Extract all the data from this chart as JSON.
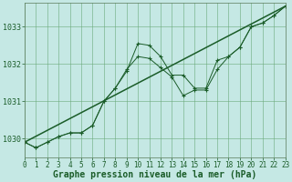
{
  "title": "Graphe pression niveau de la mer (hPa)",
  "xlabel_ticks": [
    0,
    1,
    2,
    3,
    4,
    5,
    6,
    7,
    8,
    9,
    10,
    11,
    12,
    13,
    14,
    15,
    16,
    17,
    18,
    19,
    20,
    21,
    22,
    23
  ],
  "yticks": [
    1030,
    1031,
    1032,
    1033
  ],
  "ylim": [
    1029.5,
    1033.65
  ],
  "xlim": [
    0,
    23
  ],
  "bg_color": "#c5e8e4",
  "grid_color": "#6aaa7a",
  "line_color": "#1a5c28",
  "line1_y": [
    1029.9,
    1029.75,
    1029.9,
    1030.05,
    1030.15,
    1030.15,
    1030.35,
    1031.0,
    1031.35,
    1031.8,
    1032.55,
    1032.5,
    1032.2,
    1031.7,
    1031.7,
    1031.35,
    1031.35,
    1032.1,
    1032.2,
    1032.45,
    1033.0,
    1033.1,
    1033.3,
    1033.55
  ],
  "line2_y": [
    1029.9,
    1029.75,
    1029.9,
    1030.05,
    1030.15,
    1030.15,
    1030.35,
    1031.0,
    1031.35,
    1031.85,
    1032.2,
    1032.15,
    1031.9,
    1031.65,
    1031.15,
    1031.3,
    1031.3,
    1031.85,
    1032.2,
    1032.45,
    1033.0,
    1033.1,
    1033.3,
    1033.55
  ],
  "line3_x": [
    0,
    23
  ],
  "line3_y": [
    1029.9,
    1033.55
  ],
  "label_fontsize": 7,
  "tick_fontsize": 5.5
}
